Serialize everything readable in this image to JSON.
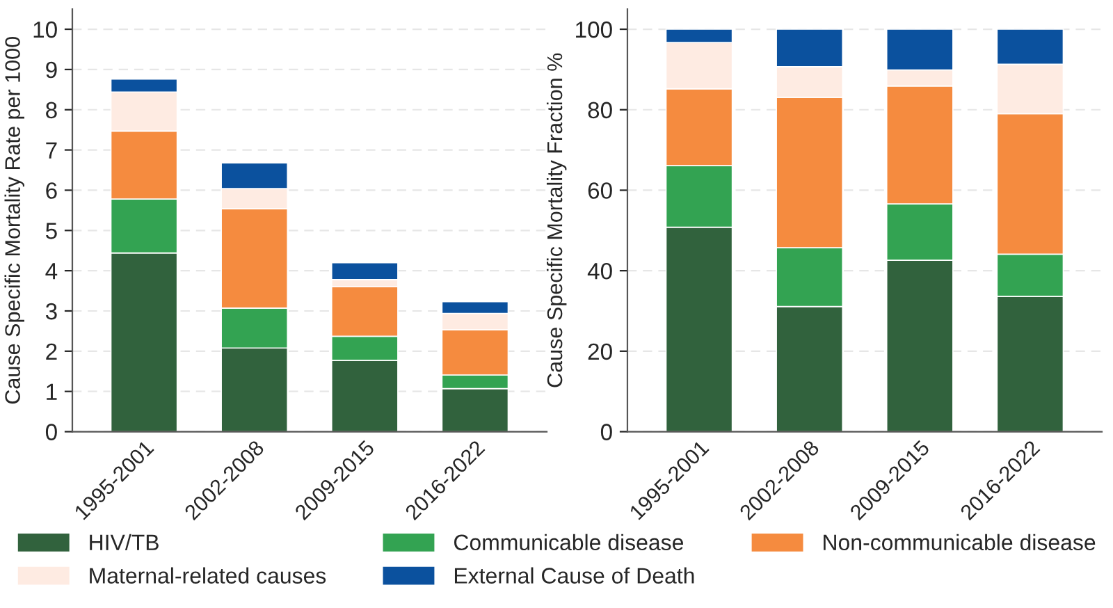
{
  "chart_data": [
    {
      "type": "bar",
      "stacked": true,
      "ylabel": "Cause Specific Mortality Rate per 1000",
      "categories": [
        "1995-2001",
        "2002-2008",
        "2009-2015",
        "2016-2022"
      ],
      "ylim": [
        0,
        10.5
      ],
      "yticks": [
        0,
        1,
        2,
        3,
        4,
        5,
        6,
        7,
        8,
        9,
        10
      ],
      "grid": "y",
      "legend": "bottom",
      "series": [
        {
          "name": "HIV/TB",
          "color": "#31623d",
          "values": [
            4.44,
            2.08,
            1.77,
            1.07
          ]
        },
        {
          "name": "Communicable disease",
          "color": "#33a352",
          "values": [
            1.34,
            0.99,
            0.6,
            0.34
          ]
        },
        {
          "name": "Non-communicable disease",
          "color": "#f58b3f",
          "values": [
            1.69,
            2.47,
            1.23,
            1.12
          ]
        },
        {
          "name": "Maternal-related causes",
          "color": "#feebe2",
          "values": [
            0.97,
            0.5,
            0.18,
            0.41
          ]
        },
        {
          "name": "External Cause of Death",
          "color": "#0b519e",
          "values": [
            0.32,
            0.64,
            0.42,
            0.29
          ]
        }
      ]
    },
    {
      "type": "bar",
      "stacked": true,
      "ylabel": "Cause Specific Mortality Fraction %",
      "categories": [
        "1995-2001",
        "2002-2008",
        "2009-2015",
        "2016-2022"
      ],
      "ylim": [
        0,
        105
      ],
      "yticks": [
        0,
        20,
        40,
        60,
        80,
        100
      ],
      "grid": "y",
      "series": [
        {
          "color": "#31623d",
          "values": [
            50.8,
            31.1,
            42.6,
            33.6
          ]
        },
        {
          "color": "#33a352",
          "values": [
            15.3,
            14.6,
            14.0,
            10.5
          ]
        },
        {
          "color": "#f58b3f",
          "values": [
            19.1,
            37.4,
            29.3,
            34.9
          ]
        },
        {
          "color": "#feebe2",
          "values": [
            11.5,
            7.6,
            4.0,
            12.3
          ]
        },
        {
          "color": "#0b519e",
          "values": [
            3.3,
            9.3,
            10.1,
            8.7
          ]
        }
      ]
    }
  ]
}
